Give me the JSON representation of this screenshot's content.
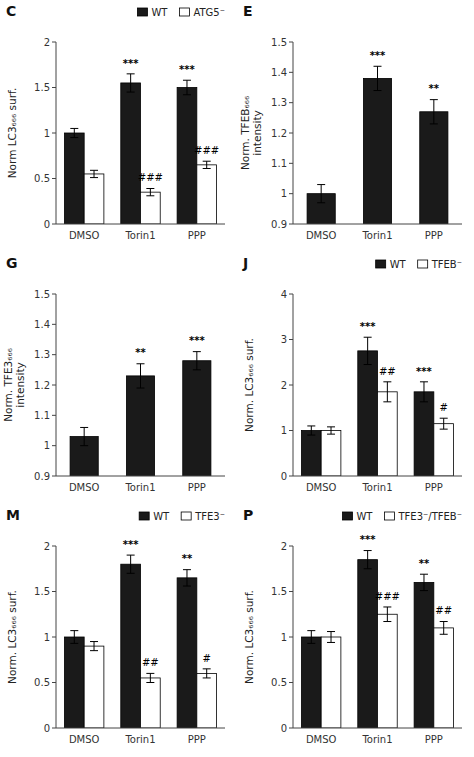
{
  "chart_data": [
    {
      "type": "bar",
      "title": "C",
      "categories": [
        "DMSO",
        "Torin1",
        "PPP"
      ],
      "series": [
        {
          "name": "WT",
          "color": "#1a1a1a",
          "values": [
            1.0,
            1.55,
            1.5
          ],
          "errors": [
            0.05,
            0.1,
            0.08
          ],
          "annotations": [
            null,
            "***",
            "***"
          ]
        },
        {
          "name": "ATG5⁻",
          "color": "#ffffff",
          "values": [
            0.55,
            0.35,
            0.65
          ],
          "errors": [
            0.04,
            0.04,
            0.04
          ],
          "annotations": [
            null,
            "###",
            "###"
          ]
        }
      ],
      "ylabel": "Norm LC3₆₆₆ surf.",
      "ylim": [
        0,
        2.0
      ],
      "yticks": [
        0,
        0.5,
        1.0,
        1.5,
        2.0
      ],
      "legend": "top"
    },
    {
      "type": "bar",
      "title": "E",
      "categories": [
        "DMSO",
        "Torin1",
        "PPP"
      ],
      "values": [
        1.0,
        1.38,
        1.27
      ],
      "errors": [
        0.03,
        0.04,
        0.04
      ],
      "annotations": [
        null,
        "***",
        "**"
      ],
      "color": "#1a1a1a",
      "ylabel": "Norm. TFEB₆₆₆\nintensity",
      "ylim": [
        0.9,
        1.5
      ],
      "yticks": [
        0.9,
        1.0,
        1.1,
        1.2,
        1.3,
        1.4,
        1.5
      ]
    },
    {
      "type": "bar",
      "title": "G",
      "categories": [
        "DMSO",
        "Torin1",
        "PPP"
      ],
      "values": [
        1.03,
        1.23,
        1.28
      ],
      "errors": [
        0.03,
        0.04,
        0.03
      ],
      "annotations": [
        null,
        "**",
        "***"
      ],
      "color": "#1a1a1a",
      "ylabel": "Norm. TFE3₆₆₆\nintensity",
      "ylim": [
        0.9,
        1.5
      ],
      "yticks": [
        0.9,
        1.0,
        1.1,
        1.2,
        1.3,
        1.4,
        1.5
      ]
    },
    {
      "type": "bar",
      "title": "J",
      "categories": [
        "DMSO",
        "Torin1",
        "PPP"
      ],
      "series": [
        {
          "name": "WT",
          "color": "#1a1a1a",
          "values": [
            1.0,
            2.75,
            1.85
          ],
          "errors": [
            0.1,
            0.3,
            0.22
          ],
          "annotations": [
            null,
            "***",
            "***"
          ]
        },
        {
          "name": "TFEB⁻",
          "color": "#ffffff",
          "values": [
            1.0,
            1.85,
            1.15
          ],
          "errors": [
            0.08,
            0.22,
            0.12
          ],
          "annotations": [
            null,
            "##",
            "#"
          ]
        }
      ],
      "ylabel": "Norm. LC3₆₆₆ surf.",
      "ylim": [
        0,
        4.0
      ],
      "yticks": [
        0,
        1,
        2,
        3,
        4
      ],
      "legend": "top"
    },
    {
      "type": "bar",
      "title": "M",
      "categories": [
        "DMSO",
        "Torin1",
        "PPP"
      ],
      "series": [
        {
          "name": "WT",
          "color": "#1a1a1a",
          "values": [
            1.0,
            1.8,
            1.65
          ],
          "errors": [
            0.07,
            0.1,
            0.09
          ],
          "annotations": [
            null,
            "***",
            "**"
          ]
        },
        {
          "name": "TFE3⁻",
          "color": "#ffffff",
          "values": [
            0.9,
            0.55,
            0.6
          ],
          "errors": [
            0.05,
            0.05,
            0.05
          ],
          "annotations": [
            null,
            "##",
            "#"
          ]
        }
      ],
      "ylabel": "Norm. LC3₆₆₆ surf.",
      "ylim": [
        0,
        2.0
      ],
      "yticks": [
        0,
        0.5,
        1.0,
        1.5,
        2.0
      ],
      "legend": "top"
    },
    {
      "type": "bar",
      "title": "P",
      "categories": [
        "DMSO",
        "Torin1",
        "PPP"
      ],
      "series": [
        {
          "name": "WT",
          "color": "#1a1a1a",
          "values": [
            1.0,
            1.85,
            1.6
          ],
          "errors": [
            0.07,
            0.1,
            0.09
          ],
          "annotations": [
            null,
            "***",
            "**"
          ]
        },
        {
          "name": "TFE3⁻/TFEB⁻",
          "color": "#ffffff",
          "values": [
            1.0,
            1.25,
            1.1
          ],
          "errors": [
            0.06,
            0.08,
            0.07
          ],
          "annotations": [
            null,
            "###",
            "##"
          ]
        }
      ],
      "ylabel": "Norm. LC3₆₆₆ surf.",
      "ylim": [
        0,
        2.0
      ],
      "yticks": [
        0,
        0.5,
        1.0,
        1.5,
        2.0
      ],
      "legend": "top"
    }
  ]
}
